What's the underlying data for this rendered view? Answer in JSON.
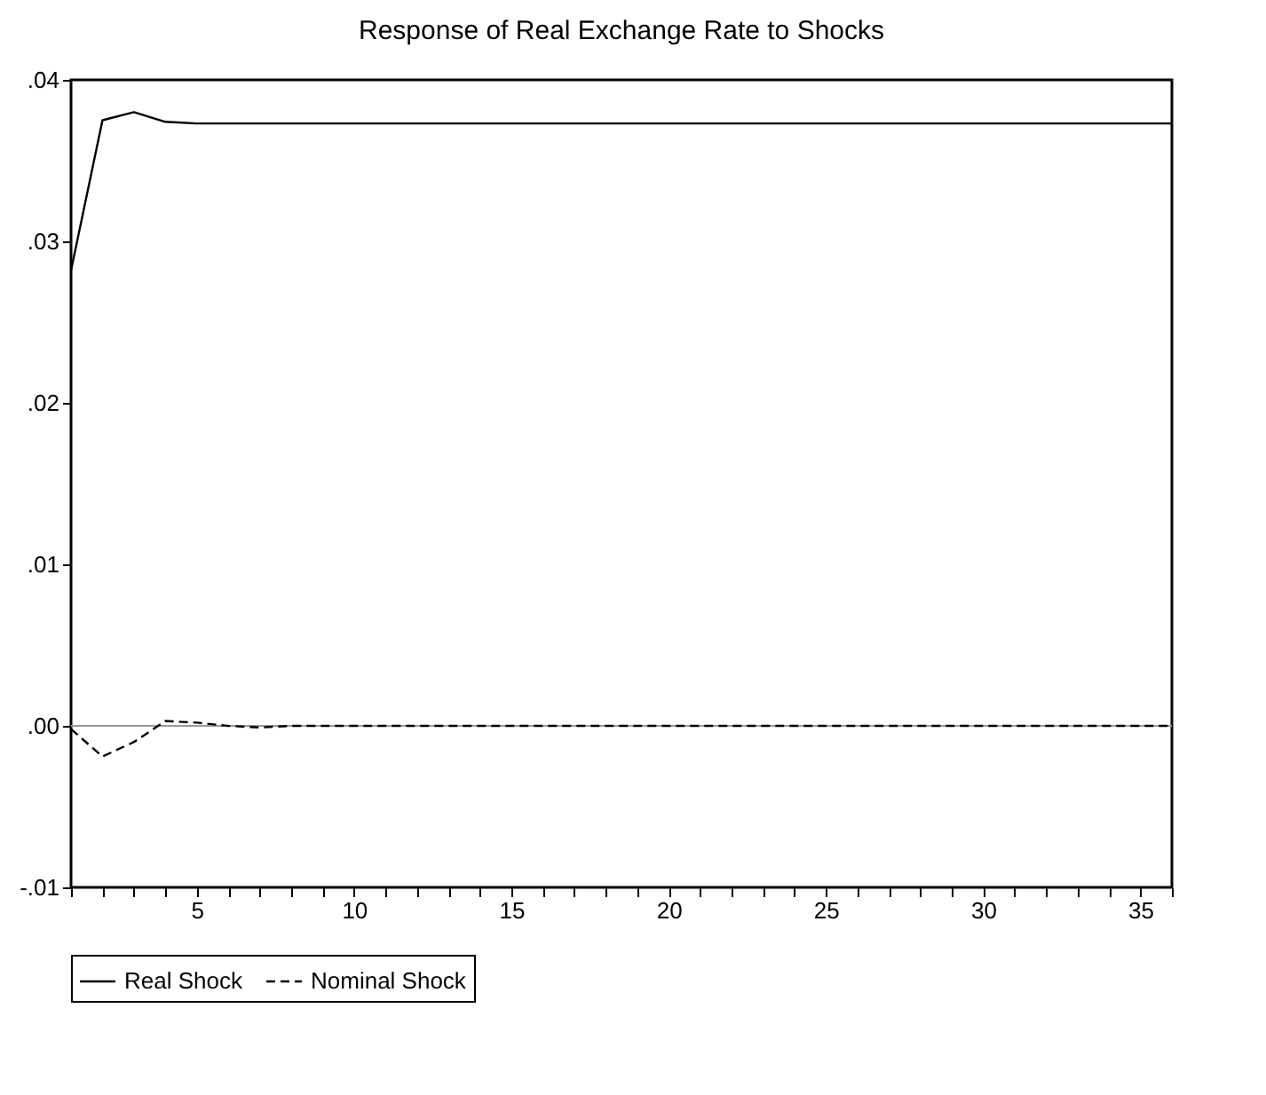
{
  "chart_data": {
    "type": "line",
    "title": "Response of Real Exchange Rate to Shocks",
    "x": [
      1,
      2,
      3,
      4,
      5,
      6,
      7,
      8,
      9,
      10,
      11,
      12,
      13,
      14,
      15,
      16,
      17,
      18,
      19,
      20,
      21,
      22,
      23,
      24,
      25,
      26,
      27,
      28,
      29,
      30,
      31,
      32,
      33,
      34,
      35,
      36
    ],
    "series": [
      {
        "name": "Real Shock",
        "color": "#000000",
        "line_style": "solid",
        "values": [
          0.0282,
          0.0375,
          0.038,
          0.0374,
          0.0373,
          0.0373,
          0.0373,
          0.0373,
          0.0373,
          0.0373,
          0.0373,
          0.0373,
          0.0373,
          0.0373,
          0.0373,
          0.0373,
          0.0373,
          0.0373,
          0.0373,
          0.0373,
          0.0373,
          0.0373,
          0.0373,
          0.0373,
          0.0373,
          0.0373,
          0.0373,
          0.0373,
          0.0373,
          0.0373,
          0.0373,
          0.0373,
          0.0373,
          0.0373,
          0.0373,
          0.0373
        ]
      },
      {
        "name": "Nominal Shock",
        "color": "#000000",
        "line_style": "dashed",
        "values": [
          -0.0002,
          -0.0019,
          -0.001,
          0.0003,
          0.0002,
          0.0,
          -0.0001,
          0.0,
          0.0,
          0.0,
          0.0,
          0.0,
          0.0,
          0.0,
          0.0,
          0.0,
          0.0,
          0.0,
          0.0,
          0.0,
          0.0,
          0.0,
          0.0,
          0.0,
          0.0,
          0.0,
          0.0,
          0.0,
          0.0,
          0.0,
          0.0,
          0.0,
          0.0,
          0.0,
          0.0,
          0.0
        ]
      }
    ],
    "xlim": [
      1,
      36
    ],
    "xticks": [
      {
        "value": 1,
        "label": null
      },
      {
        "value": 2,
        "label": null
      },
      {
        "value": 3,
        "label": null
      },
      {
        "value": 4,
        "label": null
      },
      5,
      {
        "value": 6,
        "label": null
      },
      {
        "value": 7,
        "label": null
      },
      {
        "value": 8,
        "label": null
      },
      {
        "value": 9,
        "label": null
      },
      10,
      {
        "value": 11,
        "label": null
      },
      {
        "value": 12,
        "label": null
      },
      {
        "value": 13,
        "label": null
      },
      {
        "value": 14,
        "label": null
      },
      15,
      {
        "value": 16,
        "label": null
      },
      {
        "value": 17,
        "label": null
      },
      {
        "value": 18,
        "label": null
      },
      {
        "value": 19,
        "label": null
      },
      20,
      {
        "value": 21,
        "label": null
      },
      {
        "value": 22,
        "label": null
      },
      {
        "value": 23,
        "label": null
      },
      {
        "value": 24,
        "label": null
      },
      25,
      {
        "value": 26,
        "label": null
      },
      {
        "value": 27,
        "label": null
      },
      {
        "value": 28,
        "label": null
      },
      {
        "value": 29,
        "label": null
      },
      30,
      {
        "value": 31,
        "label": null
      },
      {
        "value": 32,
        "label": null
      },
      {
        "value": 33,
        "label": null
      },
      {
        "value": 34,
        "label": null
      },
      35,
      {
        "value": 36,
        "label": null
      }
    ],
    "ylim": [
      -0.01,
      0.04
    ],
    "yticks": [
      {
        "value": -0.01,
        "label": "-.01"
      },
      {
        "value": 0,
        "label": ".00"
      },
      {
        "value": 0.01,
        "label": ".01"
      },
      {
        "value": 0.02,
        "label": ".02"
      },
      {
        "value": 0.03,
        "label": ".03"
      },
      {
        "value": 0.04,
        "label": ".04"
      }
    ],
    "ref_lines": [
      {
        "axis": "y",
        "value": 0,
        "color": "#999999"
      }
    ],
    "grid": false,
    "legend": "bottom",
    "marker": "none"
  }
}
